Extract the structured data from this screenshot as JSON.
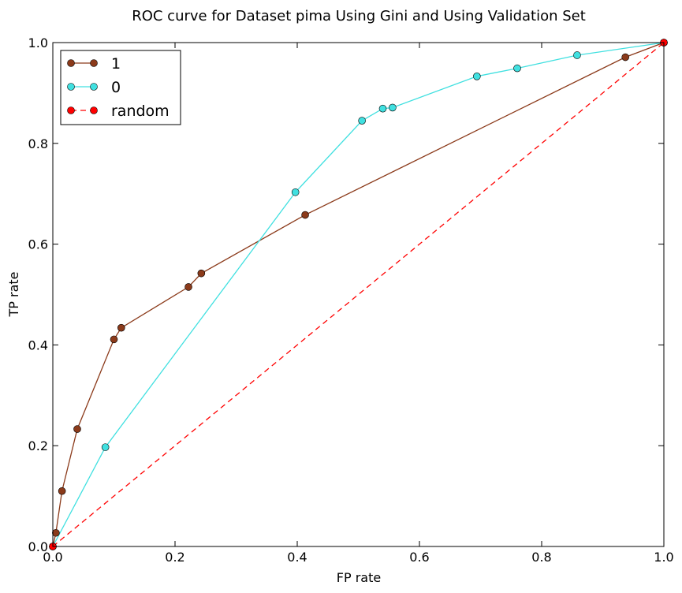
{
  "chart_data": {
    "type": "line",
    "title": "ROC curve for Dataset pima Using Gini and Using Validation Set",
    "xlabel": "FP rate",
    "ylabel": "TP rate",
    "xlim": [
      0.0,
      1.0
    ],
    "ylim": [
      0.0,
      1.0
    ],
    "xticks": [
      "0.0",
      "0.2",
      "0.4",
      "0.6",
      "0.8",
      "1.0"
    ],
    "yticks": [
      "0.0",
      "0.2",
      "0.4",
      "0.6",
      "0.8",
      "1.0"
    ],
    "grid": false,
    "legend_position": "top-left",
    "series": [
      {
        "name": "1",
        "color": "#8b3a1a",
        "line_style": "solid",
        "marker": "circle",
        "x": [
          0.0,
          0.005,
          0.015,
          0.04,
          0.1,
          0.112,
          0.222,
          0.243,
          0.413,
          0.937,
          1.0
        ],
        "y": [
          0.0,
          0.027,
          0.11,
          0.233,
          0.411,
          0.434,
          0.515,
          0.542,
          0.658,
          0.971,
          1.0
        ]
      },
      {
        "name": "0",
        "color": "#40e0e0",
        "line_style": "solid",
        "marker": "circle",
        "x": [
          0.0,
          0.086,
          0.397,
          0.506,
          0.54,
          0.556,
          0.694,
          0.76,
          0.858,
          1.0
        ],
        "y": [
          0.0,
          0.197,
          0.703,
          0.845,
          0.869,
          0.871,
          0.933,
          0.949,
          0.975,
          1.0
        ]
      },
      {
        "name": "random",
        "color": "#ff0000",
        "line_style": "dashed",
        "marker": "circle",
        "x": [
          0.0,
          1.0
        ],
        "y": [
          0.0,
          1.0
        ]
      }
    ]
  }
}
